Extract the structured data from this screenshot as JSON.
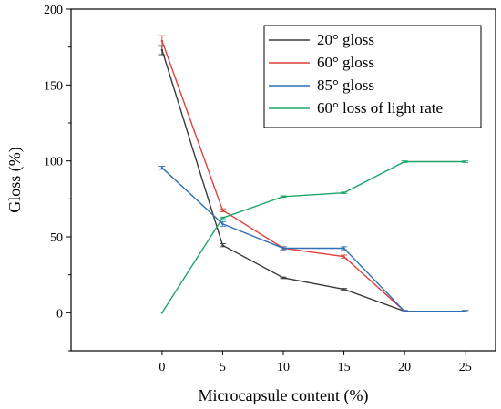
{
  "chart_data": {
    "type": "line",
    "title": "",
    "xlabel": "Microcapsule content (%)",
    "ylabel": "Gloss (%)",
    "xlim": [
      -7.5,
      27.5
    ],
    "ylim": [
      -25,
      200
    ],
    "xticks": [
      0,
      5,
      10,
      15,
      20,
      25
    ],
    "yticks": [
      0,
      50,
      100,
      150,
      200
    ],
    "x": [
      0,
      5,
      10,
      15,
      20,
      25
    ],
    "grid": false,
    "legend_position": "top-right",
    "series": [
      {
        "name": "20° gloss",
        "color": "#3a3a3a",
        "values": [
          173,
          44.5,
          23,
          15.5,
          1,
          1
        ],
        "errors": [
          3,
          1,
          0.5,
          0.5,
          0.5,
          0.5
        ]
      },
      {
        "name": "60° gloss",
        "color": "#e0403a",
        "values": [
          179,
          67.5,
          42.5,
          37,
          1,
          1
        ],
        "errors": [
          3.5,
          1,
          1,
          1,
          0.5,
          0.5
        ]
      },
      {
        "name": "85° gloss",
        "color": "#2e6fb8",
        "values": [
          95.5,
          58.5,
          42.5,
          42.5,
          1,
          1
        ],
        "errors": [
          1,
          1.5,
          1,
          1,
          0.5,
          0.5
        ]
      },
      {
        "name": "60° loss of light rate",
        "color": "#1fa468",
        "values": [
          0,
          62.5,
          76.5,
          79,
          99.5,
          99.5
        ],
        "errors": [
          0,
          0.5,
          0.5,
          0.5,
          0.5,
          0.5
        ]
      }
    ]
  }
}
